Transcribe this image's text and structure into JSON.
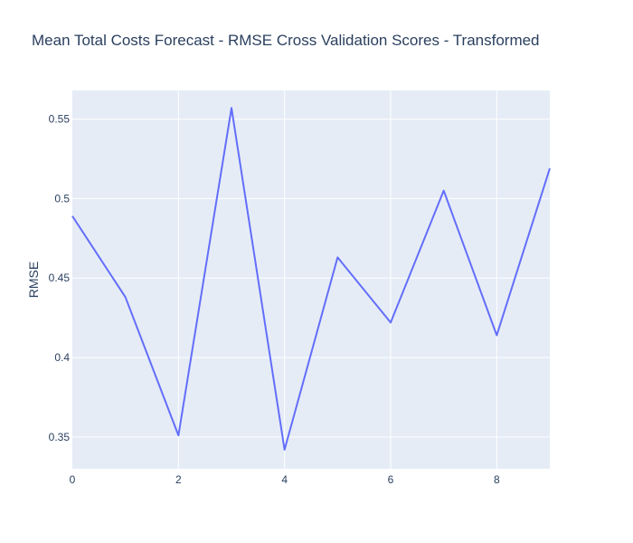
{
  "chart_data": {
    "type": "line",
    "title": "Mean Total Costs Forecast - RMSE Cross Validation Scores - Transformed",
    "xlabel": "",
    "ylabel": "RMSE",
    "x": [
      0,
      1,
      2,
      3,
      4,
      5,
      6,
      7,
      8,
      9
    ],
    "series": [
      {
        "values": [
          0.489,
          0.438,
          0.351,
          0.557,
          0.342,
          0.463,
          0.422,
          0.505,
          0.414,
          0.519
        ]
      }
    ],
    "xlim": [
      0,
      9
    ],
    "ylim": [
      0.33,
      0.568
    ],
    "x_ticks": [
      0,
      2,
      4,
      6,
      8
    ],
    "x_tick_labels": [
      "0",
      "2",
      "4",
      "6",
      "8"
    ],
    "y_ticks": [
      0.35,
      0.4,
      0.45,
      0.5,
      0.55
    ],
    "y_tick_labels": [
      "0.35",
      "0.4",
      "0.45",
      "0.5",
      "0.55"
    ],
    "grid": true,
    "legend": false,
    "colors": {
      "plot_background": "#e5ecf6",
      "line": "#636efa",
      "grid": "#ffffff",
      "text": "#2a3f5f"
    }
  }
}
